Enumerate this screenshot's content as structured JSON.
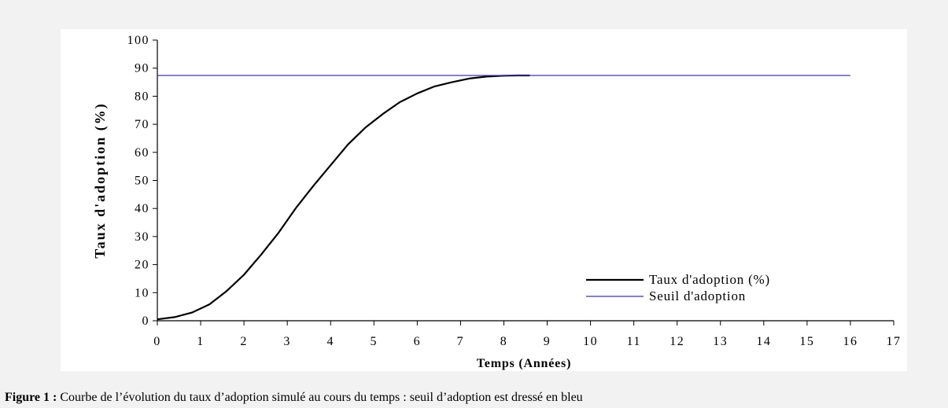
{
  "chart_data": {
    "type": "line",
    "xlabel": "Temps (Années)",
    "ylabel": "Taux d'adoption (%)",
    "xlim": [
      0,
      17
    ],
    "ylim": [
      0,
      100
    ],
    "xticks": [
      0,
      1,
      2,
      3,
      4,
      5,
      6,
      7,
      8,
      9,
      10,
      11,
      12,
      13,
      14,
      15,
      16,
      17
    ],
    "yticks": [
      0,
      10,
      20,
      30,
      40,
      50,
      60,
      70,
      80,
      90,
      100
    ],
    "grid": false,
    "legend_position": "bottom-right",
    "series": [
      {
        "name": "Taux d'adoption (%)",
        "color": "#000000",
        "x": [
          0,
          0.4,
          0.8,
          1.2,
          1.6,
          2.0,
          2.4,
          2.8,
          3.2,
          3.6,
          4.0,
          4.4,
          4.8,
          5.2,
          5.6,
          6.0,
          6.4,
          6.8,
          7.2,
          7.6,
          8.0,
          8.3,
          8.6
        ],
        "y": [
          0.5,
          1.3,
          2.9,
          5.8,
          10.6,
          16.4,
          23.6,
          31.4,
          40.2,
          48.0,
          55.4,
          62.8,
          68.8,
          73.6,
          77.9,
          81.0,
          83.5,
          85.0,
          86.3,
          87.0,
          87.3,
          87.4,
          87.4
        ]
      },
      {
        "name": "Seuil d'adoption",
        "color": "#3333cc",
        "x": [
          0,
          16
        ],
        "y": [
          87.4,
          87.4
        ]
      }
    ]
  },
  "caption": {
    "label": "Figure 1 :",
    "text": " Courbe de l’évolution du taux d’adoption simulé au cours du temps : seuil d’adoption est dressé en bleu"
  }
}
